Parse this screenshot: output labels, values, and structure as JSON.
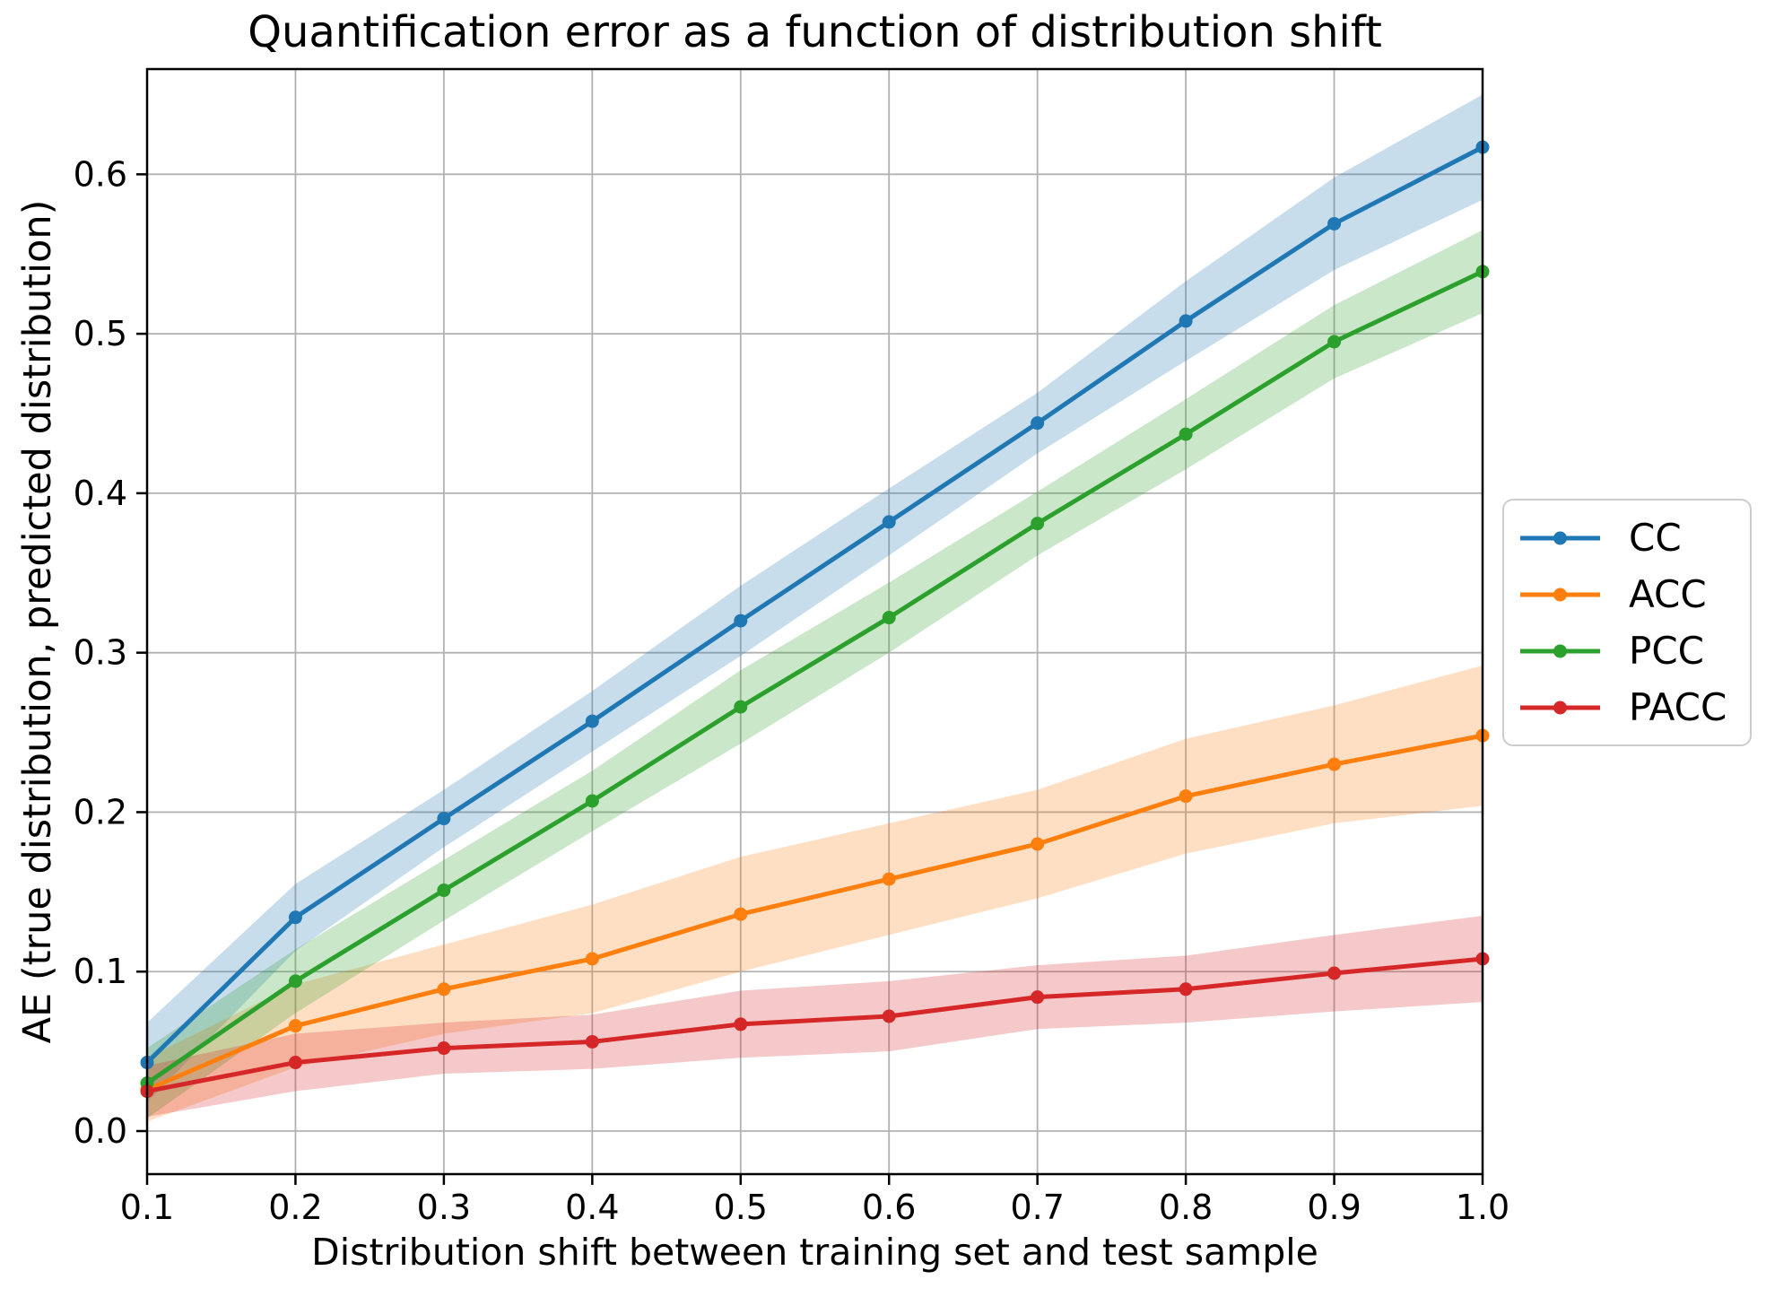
{
  "chart_data": {
    "type": "line",
    "title": "Quantification error as a function of distribution shift",
    "xlabel": "Distribution shift between training set and test sample",
    "ylabel": "AE (true distribution, predicted distribution)",
    "grid": true,
    "legend_position": "center right, outside axes",
    "band_alpha": 0.25,
    "xlim": [
      0.1,
      1.0
    ],
    "ylim": [
      -0.027,
      0.666
    ],
    "xticks": [
      0.1,
      0.2,
      0.3,
      0.4,
      0.5,
      0.6,
      0.7,
      0.8,
      0.9,
      1.0
    ],
    "yticks": [
      0.0,
      0.1,
      0.2,
      0.3,
      0.4,
      0.5,
      0.6
    ],
    "x": [
      0.1,
      0.2,
      0.3,
      0.4,
      0.5,
      0.6,
      0.7,
      0.8,
      0.9,
      1.0
    ],
    "series": [
      {
        "name": "CC",
        "color": "#1f77b4",
        "values": [
          0.043,
          0.134,
          0.196,
          0.257,
          0.32,
          0.382,
          0.444,
          0.508,
          0.569,
          0.617
        ],
        "band_halfwidth": [
          0.025,
          0.021,
          0.018,
          0.019,
          0.022,
          0.021,
          0.019,
          0.025,
          0.029,
          0.033
        ]
      },
      {
        "name": "ACC",
        "color": "#ff7f0e",
        "values": [
          0.026,
          0.066,
          0.089,
          0.108,
          0.136,
          0.158,
          0.18,
          0.21,
          0.23,
          0.248
        ],
        "band_halfwidth": [
          0.02,
          0.026,
          0.028,
          0.034,
          0.036,
          0.035,
          0.034,
          0.036,
          0.037,
          0.044
        ]
      },
      {
        "name": "PCC",
        "color": "#2ca02c",
        "values": [
          0.03,
          0.094,
          0.151,
          0.207,
          0.266,
          0.322,
          0.381,
          0.437,
          0.495,
          0.539
        ],
        "band_halfwidth": [
          0.022,
          0.02,
          0.019,
          0.019,
          0.023,
          0.022,
          0.02,
          0.022,
          0.023,
          0.026
        ]
      },
      {
        "name": "PACC",
        "color": "#d62728",
        "values": [
          0.025,
          0.043,
          0.052,
          0.056,
          0.067,
          0.072,
          0.084,
          0.089,
          0.099,
          0.108
        ],
        "band_halfwidth": [
          0.016,
          0.018,
          0.016,
          0.017,
          0.021,
          0.022,
          0.02,
          0.021,
          0.024,
          0.027
        ]
      }
    ]
  },
  "style": {
    "grid_color": "#b2b2b2",
    "spine_color": "#000000",
    "background": "#ffffff"
  }
}
